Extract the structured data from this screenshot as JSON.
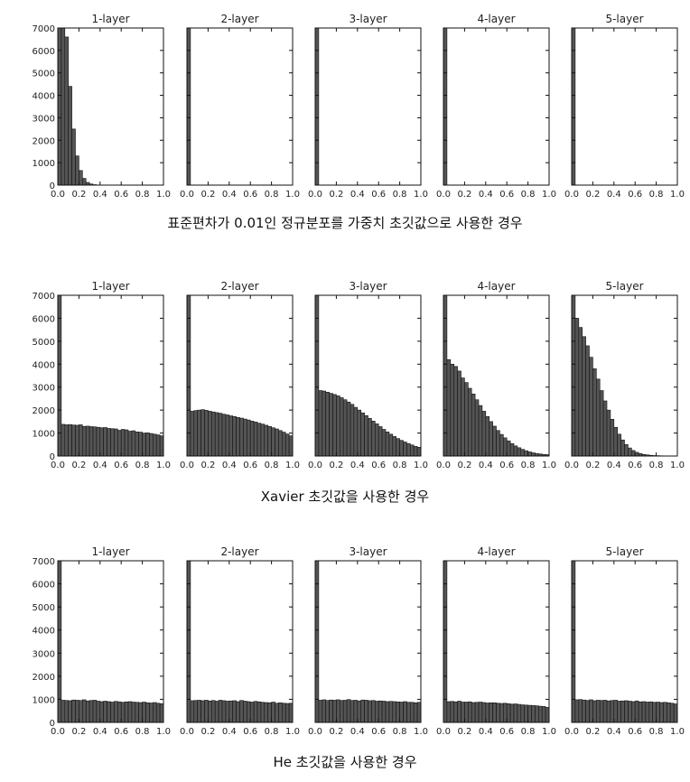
{
  "chart_data": [
    {
      "type": "bar",
      "title": "표준편차가 0.01인 정규분포를 가중치 초깃값으로 사용한 경우",
      "ylim": [
        0,
        7000
      ],
      "xlim": [
        0,
        1
      ],
      "yticks": [
        0,
        1000,
        2000,
        3000,
        4000,
        5000,
        6000,
        7000
      ],
      "xticks": [
        "0.0",
        "0.2",
        "0.4",
        "0.6",
        "0.8",
        "1.0"
      ],
      "bin_width": 0.0333,
      "grid": false,
      "panels": [
        {
          "name": "1-layer",
          "values": [
            7000,
            7000,
            6600,
            4400,
            2500,
            1300,
            650,
            300,
            120,
            50,
            20,
            5,
            0,
            0,
            0,
            0,
            0,
            0,
            0,
            0,
            0,
            0,
            0,
            0,
            0,
            0,
            0,
            0,
            0,
            0
          ]
        },
        {
          "name": "2-layer",
          "values": [
            7000,
            0,
            0,
            0,
            0,
            0,
            0,
            0,
            0,
            0,
            0,
            0,
            0,
            0,
            0,
            0,
            0,
            0,
            0,
            0,
            0,
            0,
            0,
            0,
            0,
            0,
            0,
            0,
            0,
            0
          ]
        },
        {
          "name": "3-layer",
          "values": [
            7000,
            0,
            0,
            0,
            0,
            0,
            0,
            0,
            0,
            0,
            0,
            0,
            0,
            0,
            0,
            0,
            0,
            0,
            0,
            0,
            0,
            0,
            0,
            0,
            0,
            0,
            0,
            0,
            0,
            0
          ]
        },
        {
          "name": "4-layer",
          "values": [
            7000,
            0,
            0,
            0,
            0,
            0,
            0,
            0,
            0,
            0,
            0,
            0,
            0,
            0,
            0,
            0,
            0,
            0,
            0,
            0,
            0,
            0,
            0,
            0,
            0,
            0,
            0,
            0,
            0,
            0
          ]
        },
        {
          "name": "5-layer",
          "values": [
            7000,
            0,
            0,
            0,
            0,
            0,
            0,
            0,
            0,
            0,
            0,
            0,
            0,
            0,
            0,
            0,
            0,
            0,
            0,
            0,
            0,
            0,
            0,
            0,
            0,
            0,
            0,
            0,
            0,
            0
          ]
        }
      ]
    },
    {
      "type": "bar",
      "title": "Xavier 초깃값을 사용한 경우",
      "ylim": [
        0,
        7000
      ],
      "xlim": [
        0,
        1
      ],
      "yticks": [
        0,
        1000,
        2000,
        3000,
        4000,
        5000,
        6000,
        7000
      ],
      "xticks": [
        "0.0",
        "0.2",
        "0.4",
        "0.6",
        "0.8",
        "1.0"
      ],
      "bin_width": 0.0333,
      "grid": false,
      "panels": [
        {
          "name": "1-layer",
          "values": [
            7000,
            1380,
            1360,
            1370,
            1350,
            1340,
            1360,
            1290,
            1300,
            1280,
            1270,
            1250,
            1230,
            1240,
            1200,
            1190,
            1180,
            1120,
            1160,
            1140,
            1080,
            1100,
            1050,
            1040,
            1000,
            1010,
            980,
            950,
            920,
            880
          ]
        },
        {
          "name": "2-layer",
          "values": [
            7000,
            1950,
            1980,
            2000,
            2020,
            1990,
            1950,
            1920,
            1890,
            1860,
            1820,
            1790,
            1750,
            1720,
            1680,
            1650,
            1610,
            1570,
            1520,
            1480,
            1430,
            1390,
            1340,
            1290,
            1230,
            1180,
            1110,
            1040,
            960,
            880
          ]
        },
        {
          "name": "3-layer",
          "values": [
            7000,
            2850,
            2830,
            2780,
            2730,
            2680,
            2620,
            2540,
            2450,
            2350,
            2250,
            2120,
            2000,
            1880,
            1760,
            1640,
            1520,
            1400,
            1280,
            1160,
            1050,
            950,
            850,
            760,
            680,
            610,
            540,
            480,
            420,
            380
          ]
        },
        {
          "name": "4-layer",
          "values": [
            7000,
            4200,
            4000,
            3900,
            3700,
            3400,
            3200,
            2950,
            2700,
            2450,
            2200,
            1950,
            1720,
            1500,
            1300,
            1110,
            940,
            790,
            660,
            540,
            440,
            360,
            290,
            230,
            180,
            140,
            110,
            90,
            70,
            60
          ]
        },
        {
          "name": "5-layer",
          "values": [
            7000,
            6000,
            5600,
            5200,
            4800,
            4300,
            3800,
            3350,
            2850,
            2400,
            2000,
            1600,
            1250,
            950,
            700,
            500,
            350,
            240,
            160,
            110,
            70,
            50,
            30,
            20,
            15,
            10,
            5,
            5,
            0,
            0
          ]
        }
      ]
    },
    {
      "type": "bar",
      "title": "He 초깃값을 사용한 경우",
      "ylim": [
        0,
        7000
      ],
      "xlim": [
        0,
        1
      ],
      "yticks": [
        0,
        1000,
        2000,
        3000,
        4000,
        5000,
        6000,
        7000
      ],
      "xticks": [
        "0.0",
        "0.2",
        "0.4",
        "0.6",
        "0.8",
        "1.0"
      ],
      "bin_width": 0.0333,
      "grid": false,
      "panels": [
        {
          "name": "1-layer",
          "values": [
            7000,
            960,
            950,
            940,
            970,
            960,
            950,
            980,
            930,
            950,
            960,
            920,
            900,
            920,
            900,
            880,
            910,
            890,
            870,
            890,
            900,
            880,
            870,
            860,
            880,
            850,
            840,
            860,
            830,
            810
          ]
        },
        {
          "name": "2-layer",
          "values": [
            7000,
            940,
            950,
            960,
            940,
            960,
            930,
            950,
            920,
            960,
            940,
            920,
            930,
            940,
            900,
            950,
            920,
            900,
            880,
            910,
            890,
            870,
            860,
            850,
            880,
            830,
            850,
            830,
            820,
            830
          ]
        },
        {
          "name": "3-layer",
          "values": [
            7000,
            960,
            980,
            950,
            970,
            960,
            980,
            950,
            960,
            990,
            950,
            960,
            930,
            970,
            960,
            940,
            950,
            920,
            930,
            920,
            900,
            910,
            900,
            890,
            880,
            900,
            870,
            870,
            850,
            870
          ]
        },
        {
          "name": "4-layer",
          "values": [
            7000,
            900,
            910,
            890,
            920,
            880,
            880,
            890,
            860,
            870,
            880,
            860,
            840,
            850,
            850,
            830,
            820,
            830,
            810,
            790,
            800,
            780,
            760,
            750,
            740,
            730,
            720,
            700,
            690,
            650
          ]
        },
        {
          "name": "5-layer",
          "values": [
            7000,
            980,
            990,
            970,
            950,
            980,
            940,
            960,
            950,
            960,
            930,
            950,
            960,
            920,
            930,
            940,
            920,
            900,
            930,
            890,
            900,
            880,
            890,
            870,
            880,
            860,
            870,
            850,
            830,
            800
          ]
        }
      ]
    }
  ]
}
